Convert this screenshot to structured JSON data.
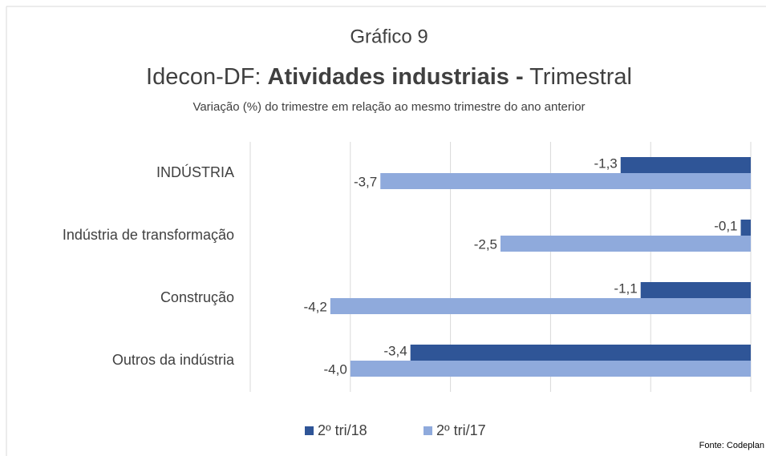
{
  "chart_data": {
    "type": "bar",
    "orientation": "horizontal",
    "supertitle": "Gráfico 9",
    "title_parts": [
      "Idecon-DF: ",
      "Atividades industriais -",
      " Trimestral"
    ],
    "subtitle": "Variação (%) do trimestre em relação ao mesmo trimestre do ano anterior",
    "source": "Fonte: Codeplan",
    "categories": [
      "INDÚSTRIA",
      "Indústria de transformação",
      "Construção",
      "Outros da indústria"
    ],
    "series": [
      {
        "name": "2º tri/18",
        "color": "#2f5597",
        "values": [
          -1.3,
          -0.1,
          -1.1,
          -3.4
        ],
        "value_labels": [
          "-1,3",
          "-0,1",
          "-1,1",
          "-3,4"
        ]
      },
      {
        "name": "2º tri/17",
        "color": "#8faadc",
        "values": [
          -3.7,
          -2.5,
          -4.2,
          -4.0
        ],
        "value_labels": [
          "-3,7",
          "-2,5",
          "-4,2",
          "-4,0"
        ]
      }
    ],
    "xlim": [
      -5,
      0
    ],
    "xticks": [
      -5,
      -4,
      -3,
      -2,
      -1,
      0
    ],
    "grid": true,
    "legend": "bottom"
  }
}
